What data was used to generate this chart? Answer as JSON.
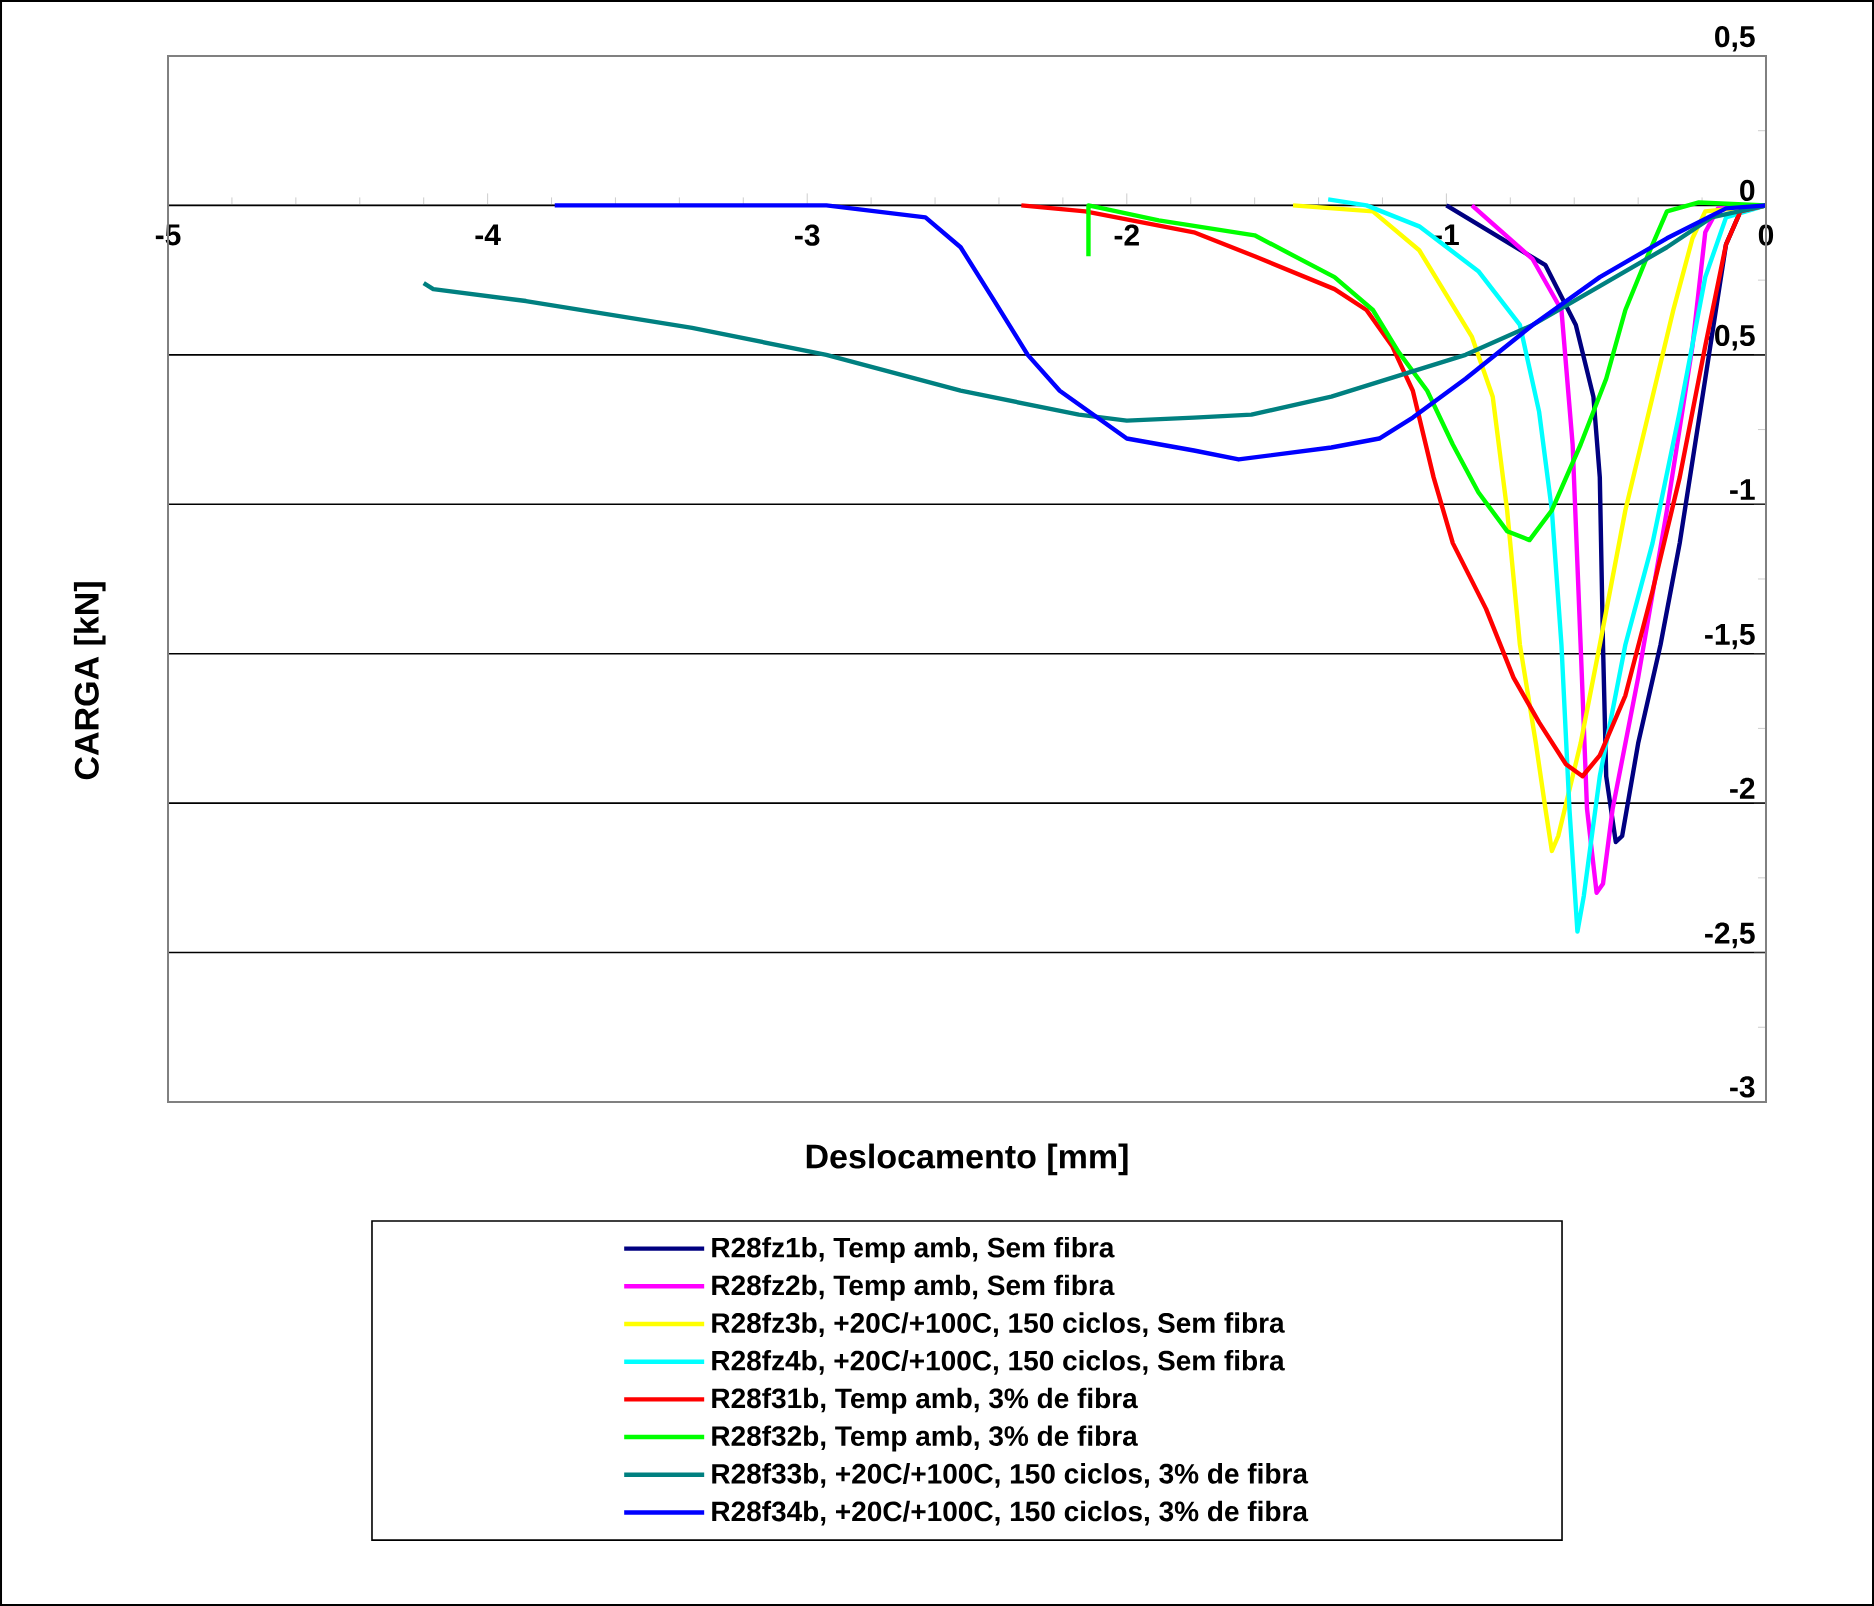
{
  "chart_data": {
    "type": "line",
    "xlabel": "Deslocamento [mm]",
    "ylabel": "CARGA [kN]",
    "xlim": [
      -5,
      0
    ],
    "ylim": [
      -3,
      0.5
    ],
    "xticks": [
      -5,
      -4,
      -3,
      -2,
      -1,
      0
    ],
    "yticks": [
      {
        "value": -3,
        "label": "-3"
      },
      {
        "value": -2.5,
        "label": "-2,5"
      },
      {
        "value": -2,
        "label": "-2"
      },
      {
        "value": -1.5,
        "label": "-1,5"
      },
      {
        "value": -1,
        "label": "-1"
      },
      {
        "value": -0.5,
        "label": "-0,5"
      },
      {
        "value": 0,
        "label": "0"
      },
      {
        "value": 0.5,
        "label": "0,5"
      }
    ],
    "grid": "y",
    "legend": "bottom",
    "line_style": "solid",
    "series": [
      {
        "name": "R28fz1b, Temp amb, Sem fibra",
        "color": "#000080",
        "x": [
          -1.0,
          -0.69,
          -0.595,
          -0.54,
          -0.52,
          -0.51,
          -0.5,
          -0.47,
          -0.45,
          -0.4,
          -0.33,
          -0.27,
          -0.19,
          -0.125,
          -0.08,
          0
        ],
        "values": [
          0,
          -0.2,
          -0.4,
          -0.64,
          -0.91,
          -1.47,
          -1.91,
          -2.13,
          -2.11,
          -1.8,
          -1.47,
          -1.13,
          -0.58,
          -0.13,
          -0.02,
          0
        ]
      },
      {
        "name": "R28fz2b, Temp amb, Sem fibra",
        "color": "#ff00ff",
        "x": [
          -0.92,
          -0.73,
          -0.64,
          -0.605,
          -0.58,
          -0.56,
          -0.53,
          -0.51,
          -0.48,
          -0.4,
          -0.31,
          -0.23,
          -0.19,
          -0.15,
          0
        ],
        "values": [
          0,
          -0.18,
          -0.35,
          -0.8,
          -1.47,
          -2.02,
          -2.3,
          -2.27,
          -2.02,
          -1.58,
          -1.02,
          -0.47,
          -0.09,
          -0.01,
          0
        ]
      },
      {
        "name": "R28fz3b, +20C/+100C, 150 ciclos, Sem fibra",
        "color": "#ffff00",
        "x": [
          -1.48,
          -1.23,
          -1.085,
          -0.92,
          -0.855,
          -0.81,
          -0.77,
          -0.72,
          -0.69,
          -0.67,
          -0.65,
          -0.58,
          -0.52,
          -0.44,
          -0.355,
          -0.29,
          -0.23,
          -0.19,
          0
        ],
        "values": [
          0,
          -0.02,
          -0.15,
          -0.44,
          -0.64,
          -1.02,
          -1.47,
          -1.8,
          -2.02,
          -2.16,
          -2.11,
          -1.8,
          -1.47,
          -1.02,
          -0.64,
          -0.35,
          -0.11,
          -0.02,
          0
        ]
      },
      {
        "name": "R28fz4b, +20C/+100C, 150 ciclos, Sem fibra",
        "color": "#00ffff",
        "x": [
          -1.37,
          -1.25,
          -1.085,
          -0.9,
          -0.77,
          -0.71,
          -0.67,
          -0.64,
          -0.615,
          -0.59,
          -0.57,
          -0.52,
          -0.44,
          -0.355,
          -0.27,
          -0.19,
          -0.125,
          0
        ],
        "values": [
          0.02,
          0,
          -0.07,
          -0.22,
          -0.4,
          -0.69,
          -1.02,
          -1.47,
          -2.02,
          -2.43,
          -2.31,
          -1.91,
          -1.47,
          -1.13,
          -0.69,
          -0.24,
          -0.04,
          0
        ]
      },
      {
        "name": "R28f31b, Temp amb, 3% de fibra",
        "color": "#ff0000",
        "x": [
          -2.33,
          -2.13,
          -1.79,
          -1.6,
          -1.35,
          -1.25,
          -1.17,
          -1.105,
          -1.04,
          -0.98,
          -0.876,
          -0.79,
          -0.71,
          -0.626,
          -0.574,
          -0.52,
          -0.44,
          -0.355,
          -0.27,
          -0.19,
          -0.125,
          -0.08,
          0
        ],
        "values": [
          0,
          -0.02,
          -0.09,
          -0.17,
          -0.28,
          -0.35,
          -0.47,
          -0.62,
          -0.91,
          -1.13,
          -1.35,
          -1.58,
          -1.73,
          -1.87,
          -1.91,
          -1.84,
          -1.64,
          -1.29,
          -0.91,
          -0.47,
          -0.13,
          -0.02,
          0
        ]
      },
      {
        "name": "R28f32b, Temp amb, 3% de fibra",
        "color": "#00ff00",
        "x": [
          -2.12,
          -2.12,
          -1.9,
          -1.6,
          -1.35,
          -1.23,
          -1.15,
          -1.06,
          -0.98,
          -0.9,
          -0.81,
          -0.74,
          -0.67,
          -0.58,
          -0.5,
          -0.44,
          -0.375,
          -0.31,
          -0.21,
          0
        ],
        "values": [
          -0.17,
          0,
          -0.05,
          -0.1,
          -0.24,
          -0.35,
          -0.49,
          -0.62,
          -0.8,
          -0.96,
          -1.09,
          -1.12,
          -1.02,
          -0.8,
          -0.58,
          -0.35,
          -0.18,
          -0.02,
          0.01,
          0
        ]
      },
      {
        "name": "R28f33b, +20C/+100C, 150 ciclos, 3% de fibra",
        "color": "#008080",
        "x": [
          -4.2,
          -4.17,
          -3.88,
          -3.36,
          -2.94,
          -2.52,
          -2.15,
          -2.0,
          -1.79,
          -1.61,
          -1.36,
          -1.15,
          -0.94,
          -0.73,
          -0.52,
          -0.31,
          -0.17,
          0
        ],
        "values": [
          -0.26,
          -0.28,
          -0.32,
          -0.41,
          -0.5,
          -0.62,
          -0.7,
          -0.72,
          -0.71,
          -0.7,
          -0.64,
          -0.57,
          -0.5,
          -0.4,
          -0.27,
          -0.14,
          -0.04,
          0
        ]
      },
      {
        "name": "R28f34b, +20C/+100C, 150 ciclos, 3% de fibra",
        "color": "#0000ff",
        "x": [
          -3.79,
          -2.94,
          -2.63,
          -2.52,
          -2.42,
          -2.31,
          -2.21,
          -2.0,
          -1.79,
          -1.65,
          -1.36,
          -1.21,
          -1.105,
          -0.94,
          -0.73,
          -0.52,
          -0.31,
          -0.125,
          0
        ],
        "values": [
          0,
          0,
          -0.04,
          -0.14,
          -0.31,
          -0.5,
          -0.62,
          -0.78,
          -0.82,
          -0.85,
          -0.81,
          -0.78,
          -0.71,
          -0.58,
          -0.4,
          -0.24,
          -0.11,
          -0.01,
          0
        ]
      }
    ]
  }
}
